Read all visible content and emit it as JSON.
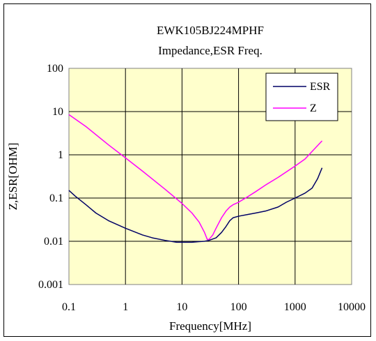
{
  "chart_data": {
    "type": "line",
    "title": "EWK105BJ224MPHF",
    "subtitle": "Impedance,ESR Freq.",
    "xlabel": "Frequency[MHz]",
    "ylabel": "Z,ESR[OHM]",
    "x_scale": "log",
    "y_scale": "log",
    "xlim": [
      0.1,
      10000
    ],
    "ylim": [
      0.001,
      100
    ],
    "x_ticks": [
      "0.1",
      "1",
      "10",
      "100",
      "1000",
      "10000"
    ],
    "y_ticks": [
      "100",
      "10",
      "1",
      "0.1",
      "0.01",
      "0.001"
    ],
    "x_tick_values": [
      0.1,
      1,
      10,
      100,
      1000,
      10000
    ],
    "y_tick_values": [
      100,
      10,
      1,
      0.1,
      0.01,
      0.001
    ],
    "grid": true,
    "legend_position": "top-right",
    "plot_background": "#ffffcc",
    "series": [
      {
        "name": "ESR",
        "color": "#000066",
        "x": [
          0.1,
          0.13,
          0.2,
          0.3,
          0.5,
          1,
          2,
          3,
          5,
          8,
          10,
          15,
          20,
          25,
          30,
          40,
          50,
          60,
          70,
          80,
          100,
          150,
          200,
          300,
          500,
          700,
          1000,
          1500,
          2000,
          2500,
          3000
        ],
        "y": [
          0.15,
          0.11,
          0.07,
          0.045,
          0.03,
          0.02,
          0.014,
          0.012,
          0.0105,
          0.0095,
          0.0095,
          0.0095,
          0.0098,
          0.01,
          0.0105,
          0.012,
          0.016,
          0.022,
          0.03,
          0.035,
          0.038,
          0.042,
          0.045,
          0.05,
          0.062,
          0.08,
          0.1,
          0.13,
          0.17,
          0.28,
          0.5
        ]
      },
      {
        "name": "Z",
        "color": "#ff00ff",
        "x": [
          0.1,
          0.2,
          0.5,
          1,
          2,
          5,
          10,
          15,
          20,
          25,
          28,
          30,
          35,
          40,
          50,
          60,
          70,
          80,
          100,
          150,
          200,
          300,
          500,
          1000,
          1500,
          2000,
          3000
        ],
        "y": [
          8.5,
          4.5,
          1.7,
          0.85,
          0.42,
          0.16,
          0.075,
          0.045,
          0.028,
          0.016,
          0.011,
          0.011,
          0.014,
          0.02,
          0.035,
          0.05,
          0.062,
          0.07,
          0.08,
          0.11,
          0.14,
          0.2,
          0.3,
          0.55,
          0.8,
          1.2,
          2.1
        ]
      }
    ]
  }
}
